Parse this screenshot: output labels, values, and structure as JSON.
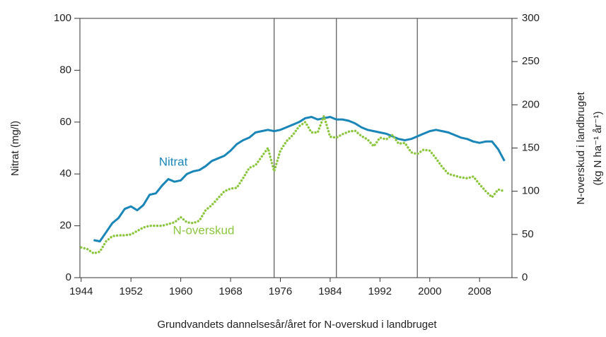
{
  "chart_data": {
    "type": "line",
    "xlabel": "Grundvandets dannelsesår/året for N-overskud i landbruget",
    "ylabel": "Nitrat (mg/l)",
    "y2label": [
      "N-overskud i landbruget",
      "(kg N ha⁻¹ år⁻¹)"
    ],
    "x": [
      1944,
      1945,
      1946,
      1947,
      1948,
      1949,
      1950,
      1951,
      1952,
      1953,
      1954,
      1955,
      1956,
      1957,
      1958,
      1959,
      1960,
      1961,
      1962,
      1963,
      1964,
      1965,
      1966,
      1967,
      1968,
      1969,
      1970,
      1971,
      1972,
      1973,
      1974,
      1975,
      1976,
      1977,
      1978,
      1979,
      1980,
      1981,
      1982,
      1983,
      1984,
      1985,
      1986,
      1987,
      1988,
      1989,
      1990,
      1991,
      1992,
      1993,
      1994,
      1995,
      1996,
      1997,
      1998,
      1999,
      2000,
      2001,
      2002,
      2003,
      2004,
      2005,
      2006,
      2007,
      2008,
      2009,
      2010,
      2011,
      2012
    ],
    "series": [
      {
        "name": "Nitrat",
        "color": "#1a86b8",
        "axis": "y",
        "values": [
          null,
          null,
          14.5,
          14,
          17.5,
          21,
          23,
          26.5,
          27.5,
          26,
          28,
          32,
          32.5,
          35.5,
          38,
          37,
          37.5,
          40,
          41,
          41.5,
          43,
          45,
          46,
          47,
          49,
          51.5,
          53,
          54,
          56,
          56.5,
          57,
          56.5,
          57,
          58,
          59,
          60,
          61.5,
          62,
          61,
          61.5,
          62,
          61,
          61,
          60.5,
          59.5,
          58,
          57,
          56.5,
          56,
          55.5,
          54.5,
          53.5,
          53,
          53.5,
          54.5,
          55.5,
          56.5,
          57,
          56.5,
          56,
          55,
          54,
          53.5,
          52.5,
          52,
          52.5,
          52.5,
          49.5,
          45
        ]
      },
      {
        "name": "N-overskud",
        "color": "#8cc63f",
        "axis": "y2",
        "values": [
          35,
          33,
          28,
          30,
          42,
          48,
          49,
          49,
          50,
          54,
          58,
          60,
          60,
          60,
          62,
          64,
          70,
          64,
          63,
          66,
          78,
          84,
          92,
          100,
          103,
          104,
          115,
          127,
          130,
          140,
          150,
          123,
          147,
          158,
          165,
          175,
          180,
          168,
          168,
          187,
          163,
          162,
          166,
          169,
          170,
          164,
          160,
          152,
          162,
          160,
          165,
          155,
          156,
          145,
          143,
          148,
          147,
          138,
          128,
          120,
          118,
          116,
          115,
          117,
          108,
          100,
          93,
          102,
          100
        ]
      }
    ],
    "vlines": [
      1975,
      1985,
      1998
    ],
    "xlim": [
      1943.8,
      2013.2
    ],
    "xticks": [
      1944,
      1952,
      1960,
      1968,
      1976,
      1984,
      1992,
      2000,
      2008
    ],
    "ylim": [
      0,
      100
    ],
    "yticks": [
      0,
      20,
      40,
      60,
      80,
      100
    ],
    "y2lim": [
      0,
      300
    ],
    "y2ticks": [
      0,
      50,
      100,
      150,
      200,
      250,
      300
    ]
  }
}
